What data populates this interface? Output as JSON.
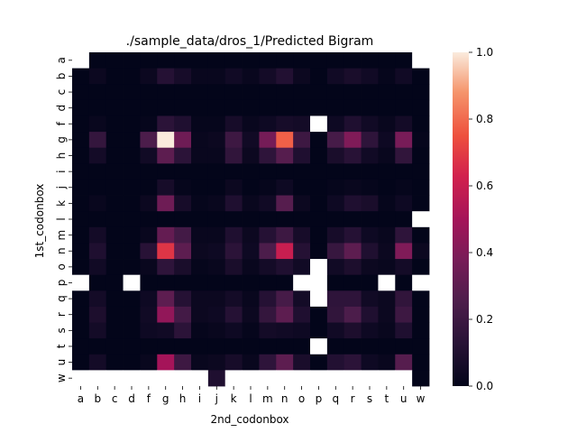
{
  "chart_data": {
    "type": "heatmap",
    "title": "./sample_data/dros_1/Predicted Bigram",
    "xlabel": "2nd_codonbox",
    "ylabel": "1st_codonbox",
    "x_categories": [
      "a",
      "b",
      "c",
      "d",
      "f",
      "g",
      "h",
      "i",
      "j",
      "k",
      "l",
      "m",
      "n",
      "o",
      "p",
      "q",
      "r",
      "s",
      "t",
      "u",
      "w"
    ],
    "y_categories": [
      "a",
      "b",
      "c",
      "d",
      "f",
      "g",
      "h",
      "i",
      "j",
      "k",
      "l",
      "m",
      "n",
      "o",
      "p",
      "q",
      "r",
      "s",
      "t",
      "u",
      "w"
    ],
    "colorbar": {
      "min": 0.0,
      "max": 1.0,
      "ticks": [
        "0.0",
        "0.2",
        "0.4",
        "0.6",
        "0.8",
        "1.0"
      ],
      "colormap": "rocket",
      "missing_color": "#ffffff"
    },
    "values": [
      [
        null,
        0.0,
        0.0,
        0.0,
        0.0,
        0.0,
        0.0,
        0.0,
        0.0,
        0.0,
        0.0,
        0.0,
        0.0,
        0.0,
        0.0,
        0.0,
        0.0,
        0.0,
        0.0,
        0.0,
        null
      ],
      [
        0.0,
        0.03,
        0.0,
        0.0,
        0.03,
        0.12,
        0.07,
        0.02,
        0.02,
        0.05,
        0.02,
        0.06,
        0.11,
        0.03,
        0.0,
        0.05,
        0.08,
        0.05,
        0.01,
        0.05,
        0.0
      ],
      [
        0.0,
        0.0,
        0.0,
        0.0,
        0.0,
        0.0,
        0.0,
        0.0,
        0.0,
        0.0,
        0.0,
        0.0,
        0.0,
        0.0,
        0.0,
        0.0,
        0.0,
        0.0,
        0.0,
        0.0,
        0.0
      ],
      [
        0.0,
        0.0,
        0.0,
        0.0,
        0.0,
        0.0,
        0.0,
        0.0,
        0.0,
        0.0,
        0.0,
        0.0,
        0.0,
        0.0,
        0.0,
        0.0,
        0.0,
        0.0,
        0.0,
        0.0,
        0.0
      ],
      [
        0.0,
        0.02,
        0.0,
        0.0,
        0.01,
        0.14,
        0.1,
        0.01,
        0.01,
        0.07,
        0.02,
        0.04,
        0.07,
        0.06,
        null,
        0.04,
        0.1,
        0.05,
        0.02,
        0.06,
        0.0
      ],
      [
        0.0,
        0.17,
        0.0,
        0.0,
        0.25,
        1.0,
        0.35,
        0.02,
        0.03,
        0.2,
        0.05,
        0.37,
        0.78,
        0.2,
        0.0,
        0.23,
        0.4,
        0.15,
        0.04,
        0.38,
        0.01
      ],
      [
        0.0,
        0.06,
        0.0,
        0.0,
        0.05,
        0.3,
        0.14,
        0.02,
        0.02,
        0.16,
        0.03,
        0.15,
        0.28,
        0.1,
        0.0,
        0.08,
        0.13,
        0.05,
        0.02,
        0.16,
        0.0
      ],
      [
        0.0,
        0.0,
        0.0,
        0.0,
        0.0,
        0.0,
        0.0,
        0.0,
        0.0,
        0.0,
        0.0,
        0.0,
        0.0,
        0.0,
        0.0,
        0.0,
        0.0,
        0.0,
        0.0,
        0.0,
        0.0
      ],
      [
        0.0,
        0.0,
        0.0,
        0.0,
        0.0,
        0.07,
        0.01,
        0.0,
        0.0,
        0.03,
        0.0,
        0.01,
        0.04,
        0.0,
        0.0,
        0.01,
        0.02,
        0.01,
        0.0,
        0.01,
        0.0
      ],
      [
        0.0,
        0.02,
        0.0,
        0.0,
        0.03,
        0.35,
        0.07,
        0.01,
        0.02,
        0.1,
        0.02,
        0.05,
        0.28,
        0.03,
        0.0,
        0.04,
        0.1,
        0.08,
        0.01,
        0.04,
        0.0
      ],
      [
        0.0,
        0.0,
        0.0,
        0.0,
        0.0,
        0.0,
        0.0,
        0.0,
        0.0,
        0.0,
        0.0,
        0.0,
        0.0,
        0.0,
        0.0,
        0.0,
        0.0,
        0.0,
        0.0,
        0.0,
        null
      ],
      [
        0.0,
        0.06,
        0.0,
        0.0,
        0.02,
        0.32,
        0.22,
        0.02,
        0.02,
        0.1,
        0.03,
        0.12,
        0.2,
        0.07,
        0.0,
        0.07,
        0.12,
        0.04,
        0.02,
        0.15,
        0.0
      ],
      [
        0.0,
        0.1,
        0.0,
        0.0,
        0.13,
        0.68,
        0.3,
        0.03,
        0.04,
        0.14,
        0.04,
        0.25,
        0.6,
        0.12,
        0.0,
        0.18,
        0.3,
        0.1,
        0.03,
        0.4,
        0.03
      ],
      [
        0.0,
        0.05,
        0.0,
        0.0,
        0.02,
        0.15,
        0.08,
        0.01,
        0.02,
        0.08,
        0.02,
        0.06,
        0.1,
        0.05,
        null,
        0.05,
        0.09,
        0.03,
        0.02,
        0.06,
        0.0
      ],
      [
        null,
        0.0,
        0.0,
        null,
        0.0,
        0.0,
        0.0,
        0.0,
        0.0,
        0.0,
        0.0,
        0.0,
        0.0,
        null,
        null,
        0.0,
        0.0,
        0.0,
        null,
        0.0,
        null
      ],
      [
        0.0,
        0.06,
        0.0,
        0.0,
        0.04,
        0.3,
        0.12,
        0.03,
        0.03,
        0.06,
        0.02,
        0.12,
        0.23,
        0.06,
        null,
        0.15,
        0.15,
        0.05,
        0.03,
        0.16,
        0.0
      ],
      [
        0.0,
        0.09,
        0.0,
        0.0,
        0.05,
        0.45,
        0.22,
        0.03,
        0.04,
        0.12,
        0.03,
        0.17,
        0.3,
        0.1,
        0.0,
        0.16,
        0.25,
        0.1,
        0.03,
        0.2,
        0.0
      ],
      [
        0.0,
        0.06,
        0.0,
        0.0,
        0.04,
        0.05,
        0.14,
        0.01,
        0.02,
        0.04,
        0.01,
        0.06,
        0.05,
        0.04,
        0.0,
        0.05,
        0.09,
        0.04,
        0.02,
        0.1,
        0.0
      ],
      [
        0.0,
        0.0,
        0.0,
        0.0,
        0.0,
        0.0,
        0.0,
        0.0,
        0.0,
        0.0,
        0.0,
        0.0,
        0.0,
        0.0,
        null,
        0.0,
        0.0,
        0.0,
        0.0,
        0.0,
        0.0
      ],
      [
        0.0,
        0.06,
        0.0,
        0.0,
        0.02,
        0.5,
        0.2,
        0.02,
        0.03,
        0.07,
        0.02,
        0.15,
        0.3,
        0.08,
        0.0,
        0.11,
        0.14,
        0.04,
        0.02,
        0.28,
        0.0
      ],
      [
        null,
        null,
        null,
        null,
        null,
        null,
        null,
        null,
        0.1,
        null,
        null,
        null,
        null,
        null,
        null,
        null,
        null,
        null,
        null,
        null,
        0.0
      ]
    ]
  }
}
